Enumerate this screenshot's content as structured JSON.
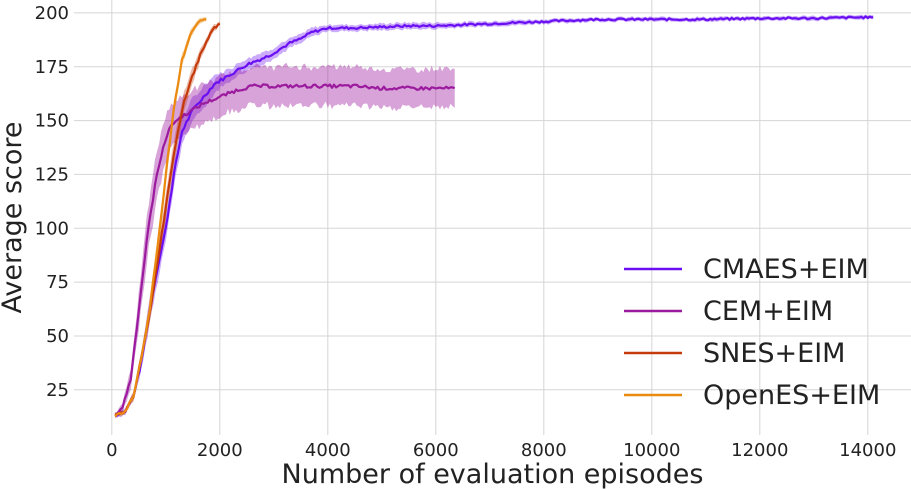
{
  "chart_data": {
    "type": "line",
    "title": "",
    "xlabel": "Number of evaluation episodes",
    "ylabel": "Average score",
    "xlim": [
      -700,
      14800
    ],
    "ylim": [
      4,
      206
    ],
    "xticks": [
      0,
      2000,
      4000,
      6000,
      8000,
      10000,
      12000,
      14000
    ],
    "yticks": [
      25,
      50,
      75,
      100,
      125,
      150,
      175,
      200
    ],
    "grid": true,
    "legend_position": "center-right",
    "series": [
      {
        "name": "CMAES+EIM",
        "color": "#6a0ff2",
        "x": [
          60,
          250,
          400,
          550,
          700,
          850,
          1000,
          1150,
          1300,
          1500,
          1700,
          1900,
          2100,
          2300,
          2500,
          2700,
          2900,
          3100,
          3300,
          3500,
          3700,
          4000,
          4500,
          5000,
          5500,
          6000,
          6500,
          7000,
          7500,
          8000,
          9000,
          10000,
          11000,
          12000,
          13000,
          14000,
          14100
        ],
        "y": [
          13,
          15,
          22,
          38,
          62,
          82,
          100,
          125,
          145,
          155,
          161,
          167,
          170,
          173,
          176,
          178,
          180,
          183,
          186,
          188,
          191,
          193,
          193,
          193.5,
          194,
          194,
          194.5,
          195,
          195.5,
          196,
          197,
          197,
          197,
          197.5,
          197.5,
          198,
          198
        ],
        "band": [
          1,
          1.5,
          2,
          4,
          6,
          6,
          6,
          6,
          6,
          5,
          5,
          4,
          3,
          3,
          3,
          3,
          2.5,
          2.5,
          2,
          2,
          2,
          1.5,
          1.5,
          1.5,
          1.5,
          1.5,
          1.2,
          1.2,
          1.2,
          1,
          1,
          1,
          1,
          1,
          1,
          1,
          1
        ]
      },
      {
        "name": "CEM+EIM",
        "color": "#9b1a9e",
        "x": [
          60,
          200,
          350,
          500,
          650,
          800,
          950,
          1100,
          1300,
          1500,
          1700,
          2000,
          2300,
          2600,
          3000,
          3500,
          4000,
          4500,
          5000,
          5500,
          6000,
          6350
        ],
        "y": [
          13,
          17,
          30,
          62,
          95,
          120,
          138,
          148,
          152,
          155,
          158,
          161,
          164,
          166,
          166,
          166,
          166,
          166,
          165,
          165,
          165,
          165
        ],
        "band": [
          1,
          2,
          5,
          8,
          10,
          11,
          11,
          10,
          9,
          9,
          9,
          9,
          9,
          9,
          9,
          9,
          9,
          9,
          9,
          9,
          9,
          9
        ]
      },
      {
        "name": "SNES+EIM",
        "color": "#c43a0a",
        "x": [
          60,
          250,
          400,
          550,
          700,
          850,
          1000,
          1150,
          1300,
          1450,
          1600,
          1750,
          1900,
          2000
        ],
        "y": [
          13,
          15,
          22,
          40,
          60,
          85,
          110,
          135,
          155,
          168,
          178,
          187,
          193,
          195
        ],
        "band": [
          1,
          1,
          2,
          3,
          4,
          5,
          6,
          6,
          5,
          4,
          3,
          2,
          1.5,
          1
        ]
      },
      {
        "name": "OpenES+EIM",
        "color": "#ea8a10",
        "x": [
          60,
          250,
          400,
          550,
          700,
          850,
          1000,
          1150,
          1300,
          1450,
          1600,
          1750
        ],
        "y": [
          13,
          15,
          22,
          40,
          62,
          92,
          125,
          155,
          178,
          190,
          196,
          197
        ],
        "band": [
          1,
          1,
          2,
          3,
          4,
          5,
          5,
          4,
          3,
          2,
          1.5,
          1
        ]
      }
    ]
  }
}
